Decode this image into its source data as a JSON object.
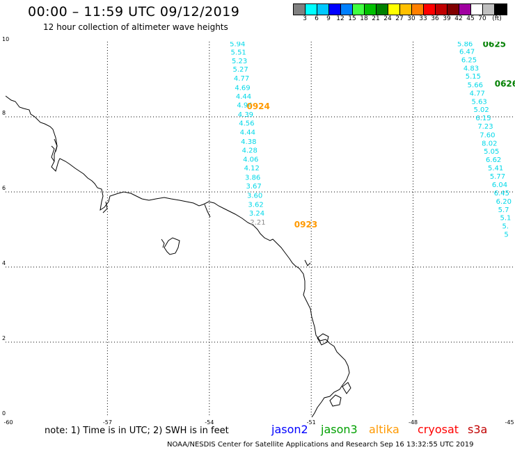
{
  "title": "00:00 – 11:59 UTC 09/12/2019",
  "subtitle": "12 hour collection of altimeter wave heights",
  "colorbar": {
    "colors": [
      "#808080",
      "#00ffff",
      "#00c8ff",
      "#0000ff",
      "#0080ff",
      "#40ff40",
      "#00c000",
      "#008000",
      "#ffff00",
      "#ffc000",
      "#ff8000",
      "#ff0000",
      "#c00000",
      "#800000",
      "#a000a0",
      "#ffffff",
      "#c0c0c0",
      "#000000"
    ],
    "labels": [
      "3",
      "6",
      "9",
      "12",
      "15",
      "18",
      "21",
      "24",
      "27",
      "30",
      "33",
      "36",
      "39",
      "42",
      "45",
      "70",
      "(ft)"
    ]
  },
  "axes": {
    "x_ticks": [
      "-60",
      "-57",
      "-54",
      "-51",
      "-48",
      "-45"
    ],
    "y_ticks": [
      "10",
      "8",
      "6",
      "4",
      "2",
      "0"
    ],
    "x_range": [
      -60,
      -45
    ],
    "y_range": [
      0,
      10
    ],
    "grid": true
  },
  "tracks": [
    {
      "label": "0924",
      "label_lon": -52.9,
      "label_lat": 8.3,
      "color": "#ff9900",
      "points": [
        {
          "lon": -53.4,
          "lat": 9.95,
          "v": "5.94"
        },
        {
          "lon": -53.37,
          "lat": 9.73,
          "v": "5.51"
        },
        {
          "lon": -53.34,
          "lat": 9.5,
          "v": "5.23"
        },
        {
          "lon": -53.31,
          "lat": 9.28,
          "v": "5.27"
        },
        {
          "lon": -53.28,
          "lat": 9.04,
          "v": "4.77"
        },
        {
          "lon": -53.25,
          "lat": 8.79,
          "v": "4.69"
        },
        {
          "lon": -53.22,
          "lat": 8.56,
          "v": "4.44"
        },
        {
          "lon": -53.19,
          "lat": 8.32,
          "v": "4.94"
        },
        {
          "lon": -53.16,
          "lat": 8.07,
          "v": "4.39"
        },
        {
          "lon": -53.13,
          "lat": 7.84,
          "v": "4.56"
        },
        {
          "lon": -53.1,
          "lat": 7.6,
          "v": "4.44"
        },
        {
          "lon": -53.07,
          "lat": 7.35,
          "v": "4.38"
        },
        {
          "lon": -53.04,
          "lat": 7.12,
          "v": "4.28"
        },
        {
          "lon": -53.01,
          "lat": 6.88,
          "v": "4.06"
        },
        {
          "lon": -52.98,
          "lat": 6.65,
          "v": "4.12"
        },
        {
          "lon": -52.95,
          "lat": 6.4,
          "v": "3.86"
        },
        {
          "lon": -52.92,
          "lat": 6.17,
          "v": "3.67"
        },
        {
          "lon": -52.89,
          "lat": 5.92,
          "v": "3.60"
        },
        {
          "lon": -52.86,
          "lat": 5.68,
          "v": "3.62"
        },
        {
          "lon": -52.83,
          "lat": 5.44,
          "v": "3.24"
        },
        {
          "lon": -52.8,
          "lat": 5.2,
          "v": "2.21",
          "gray": true
        }
      ]
    },
    {
      "label": "0923",
      "label_lon": -51.5,
      "label_lat": 5.15,
      "color": "#ff9900",
      "points": []
    },
    {
      "label": "0625",
      "label_lon": -45.95,
      "label_lat": 9.95,
      "color": "#008000",
      "points": [
        {
          "lon": -46.7,
          "lat": 9.95,
          "v": "5.86"
        },
        {
          "lon": -46.64,
          "lat": 9.75,
          "v": "6.47"
        },
        {
          "lon": -46.58,
          "lat": 9.53,
          "v": "6.25"
        },
        {
          "lon": -46.52,
          "lat": 9.31,
          "v": "4.83"
        },
        {
          "lon": -46.46,
          "lat": 9.09,
          "v": "5.15"
        },
        {
          "lon": -46.4,
          "lat": 8.86,
          "v": "5.66"
        },
        {
          "lon": -46.34,
          "lat": 8.64,
          "v": "4.77"
        },
        {
          "lon": -46.28,
          "lat": 8.42,
          "v": "5.63"
        },
        {
          "lon": -46.22,
          "lat": 8.2,
          "v": "5.02"
        },
        {
          "lon": -46.16,
          "lat": 7.98,
          "v": "6.15"
        },
        {
          "lon": -46.1,
          "lat": 7.76,
          "v": "7.23"
        },
        {
          "lon": -46.04,
          "lat": 7.53,
          "v": "7.60"
        },
        {
          "lon": -45.98,
          "lat": 7.31,
          "v": "8.02"
        },
        {
          "lon": -45.92,
          "lat": 7.09,
          "v": "5.05"
        },
        {
          "lon": -45.86,
          "lat": 6.87,
          "v": "6.62"
        },
        {
          "lon": -45.8,
          "lat": 6.65,
          "v": "5.41"
        },
        {
          "lon": -45.74,
          "lat": 6.43,
          "v": "5.77"
        },
        {
          "lon": -45.68,
          "lat": 6.2,
          "v": "6.04"
        },
        {
          "lon": -45.62,
          "lat": 5.98,
          "v": "6.45"
        },
        {
          "lon": -45.56,
          "lat": 5.76,
          "v": "6.20"
        },
        {
          "lon": -45.5,
          "lat": 5.54,
          "v": "5.7"
        },
        {
          "lon": -45.44,
          "lat": 5.32,
          "v": "5.1"
        },
        {
          "lon": -45.38,
          "lat": 5.1,
          "v": "5."
        },
        {
          "lon": -45.32,
          "lat": 4.88,
          "v": "5"
        }
      ]
    },
    {
      "label": "0626",
      "label_lon": -45.6,
      "label_lat": 8.9,
      "color": "#008000",
      "points": []
    }
  ],
  "note": "note: 1) Time is in UTC; 2) SWH is in feet",
  "satellites": [
    {
      "name": "jason2",
      "color": "#0000ff"
    },
    {
      "name": "jason3",
      "color": "#00a000"
    },
    {
      "name": "altika",
      "color": "#ff9900"
    },
    {
      "name": "cryosat",
      "color": "#ff0000"
    },
    {
      "name": "s3a",
      "color": "#c00000"
    }
  ],
  "footer": "NOAA/NESDIS Center for Satellite Applications and Research   Sep 16 13:32:55 UTC 2019"
}
